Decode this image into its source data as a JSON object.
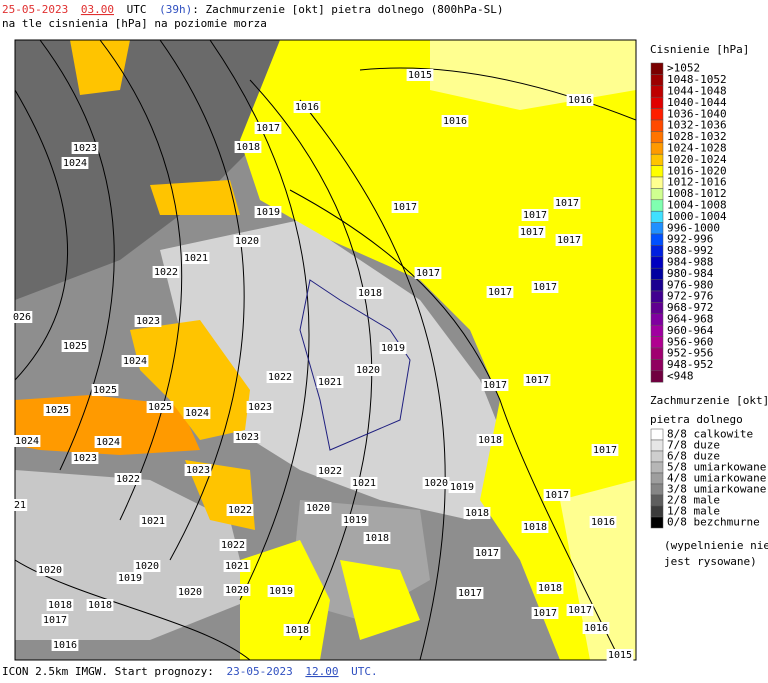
{
  "header": {
    "date": "25-05-2023",
    "hour": "03.00",
    "utc": "UTC",
    "lead": "(39h)",
    "title": ": Zachmurzenie [okt] pietra dolnego (800hPa-SL)",
    "subtitle": "na tle cisnienia [hPa] na poziomie morza"
  },
  "pressure_legend": {
    "title": "Cisnienie [hPa]",
    "entries": [
      {
        "label": ">1052",
        "color": "#7a0000"
      },
      {
        "label": "1048-1052",
        "color": "#9c0000"
      },
      {
        "label": "1044-1048",
        "color": "#be0000"
      },
      {
        "label": "1040-1044",
        "color": "#e00000"
      },
      {
        "label": "1036-1040",
        "color": "#ff1e00"
      },
      {
        "label": "1032-1036",
        "color": "#ff4a00"
      },
      {
        "label": "1028-1032",
        "color": "#ff7400"
      },
      {
        "label": "1024-1028",
        "color": "#ff9a00"
      },
      {
        "label": "1020-1024",
        "color": "#ffc400"
      },
      {
        "label": "1016-1020",
        "color": "#ffff00"
      },
      {
        "label": "1012-1016",
        "color": "#ffff90"
      },
      {
        "label": "1008-1012",
        "color": "#d0ff90"
      },
      {
        "label": "1004-1008",
        "color": "#80ffb0"
      },
      {
        "label": "1000-1004",
        "color": "#40e0ff"
      },
      {
        "label": "996-1000",
        "color": "#2090ff"
      },
      {
        "label": "992-996",
        "color": "#0050ff"
      },
      {
        "label": "988-992",
        "color": "#0020e0"
      },
      {
        "label": "984-988",
        "color": "#0000c0"
      },
      {
        "label": "980-984",
        "color": "#0000a0"
      },
      {
        "label": "976-980",
        "color": "#1a0090"
      },
      {
        "label": "972-976",
        "color": "#400090"
      },
      {
        "label": "968-972",
        "color": "#600090"
      },
      {
        "label": "964-968",
        "color": "#8000a0"
      },
      {
        "label": "960-964",
        "color": "#a000a0"
      },
      {
        "label": "956-960",
        "color": "#b00090"
      },
      {
        "label": "952-956",
        "color": "#a00070"
      },
      {
        "label": "948-952",
        "color": "#900060"
      },
      {
        "label": "<948",
        "color": "#700040"
      }
    ]
  },
  "cloud_legend": {
    "title": "Zachmurzenie [okt]",
    "subtitle": "pietra dolnego",
    "entries": [
      {
        "label": "8/8 calkowite",
        "color": "#ffffff"
      },
      {
        "label": "7/8 duze",
        "color": "#e6e6e6"
      },
      {
        "label": "6/8 duze",
        "color": "#cecece"
      },
      {
        "label": "5/8 umiarkowane",
        "color": "#b6b6b6"
      },
      {
        "label": "4/8 umiarkowane",
        "color": "#9e9e9e"
      },
      {
        "label": "3/8 umiarkowane",
        "color": "#868686"
      },
      {
        "label": "2/8 male",
        "color": "#5e5e5e"
      },
      {
        "label": "1/8 male",
        "color": "#3c3c3c"
      },
      {
        "label": "0/8 bezchmurne",
        "color": "#000000"
      }
    ],
    "note_1": "(wypelnienie nie",
    "note_2": "jest rysowane)"
  },
  "isobar_labels": [
    "1015",
    "1016",
    "1016",
    "1016",
    "1017",
    "1018",
    "1023",
    "1024",
    "1019",
    "1017",
    "1017",
    "1017",
    "1017",
    "1017",
    "1020",
    "1021",
    "1022",
    "1017",
    "1017",
    "1017",
    "1018",
    "026",
    "1023",
    "1025",
    "1019",
    "1024",
    "1020",
    "1022",
    "1021",
    "1017",
    "1017",
    "1025",
    "1025",
    "1025",
    "1024",
    "1023",
    "1023",
    "1024",
    "1024",
    "1018",
    "1017",
    "1023",
    "1022",
    "1023",
    "1022",
    "1021",
    "1020",
    "1019",
    "1017",
    "21",
    "1020",
    "1022",
    "1019",
    "1018",
    "1018",
    "1016",
    "1021",
    "1018",
    "1022",
    "1017",
    "1020",
    "1021",
    "1020",
    "1019",
    "1020",
    "1020",
    "1019",
    "1018",
    "1017",
    "1017",
    "1017",
    "1018",
    "1018",
    "1017",
    "1018",
    "1016",
    "1016",
    "1015"
  ],
  "footer": {
    "text": "ICON 2.5km IMGW. Start prognozy:",
    "date": "23-05-2023",
    "hour": "12.00",
    "utc": "UTC."
  }
}
